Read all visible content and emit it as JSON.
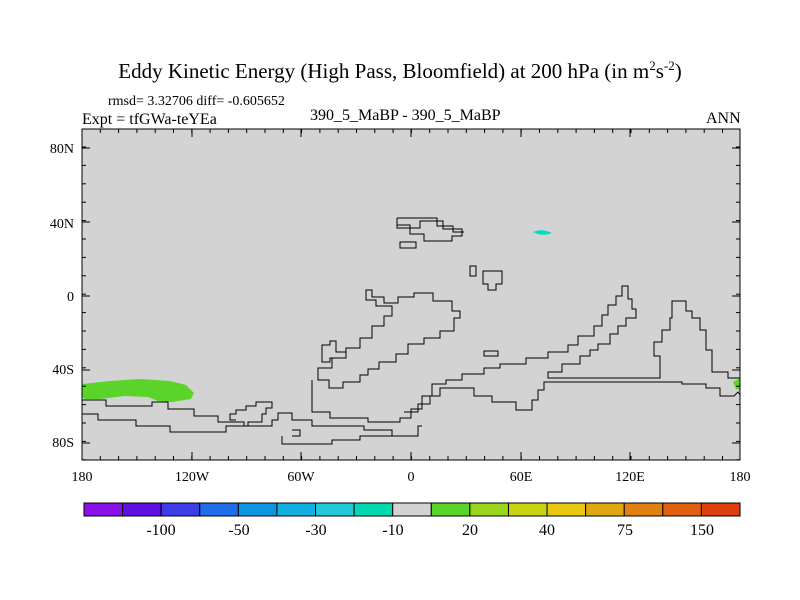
{
  "title": {
    "main": "Eddy Kinetic Energy (High Pass, Bloomfield) at 200 hPa (in m",
    "sup1": "2",
    "mid": "s",
    "sup2": "-2",
    "end": ")"
  },
  "stats_line": "rmsd= 3.32706 diff= -0.605652",
  "expt_line": "Expt = tfGWa-teYEa",
  "center_label": "390_5_MaBP - 390_5_MaBP",
  "season_label": "ANN",
  "map": {
    "background_color": "#d3d3d3",
    "coastline_color": "#000000",
    "y_tick_labels": [
      "80N",
      "40N",
      "0",
      "40S",
      "80S"
    ],
    "x_tick_labels": [
      "180",
      "120W",
      "60W",
      "0",
      "60E",
      "120E",
      "180"
    ],
    "anomaly_patches": [
      {
        "name": "cyan-patch-asia",
        "color": "#00e0c0",
        "level": "-10 to -30"
      },
      {
        "name": "green-patch-southern-ocean",
        "color": "#5ad42a",
        "level": "10 to 20"
      },
      {
        "name": "green-patch-east-edge",
        "color": "#5ad42a",
        "level": "10 to 20"
      }
    ]
  },
  "colorbar": {
    "colors": [
      "#8a10e8",
      "#6010e0",
      "#3d3de8",
      "#1e6ee8",
      "#0a96e0",
      "#10b0e0",
      "#20c8d8",
      "#00d8b0",
      "#d3d3d3",
      "#5ad42a",
      "#9ad61a",
      "#c8d410",
      "#e8c810",
      "#e0a810",
      "#e08010",
      "#e06010",
      "#e04010"
    ],
    "labels": [
      "-100",
      "-50",
      "-30",
      "-10",
      "20",
      "40",
      "75",
      "150"
    ]
  }
}
